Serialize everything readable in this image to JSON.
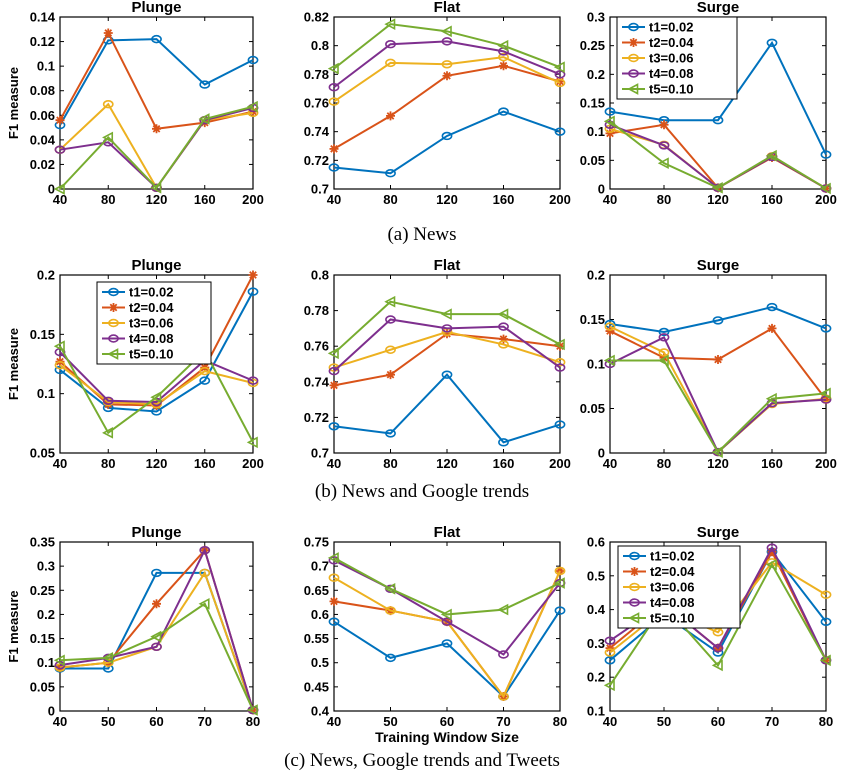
{
  "chart_data": [
    {
      "type": "line",
      "title": "Plunge",
      "xlabel": "",
      "ylabel": "F1 measure",
      "x": [
        40,
        80,
        120,
        160,
        200
      ],
      "xlim": [
        40,
        200
      ],
      "ylim": [
        0,
        0.14
      ],
      "yticks": [
        "0",
        "0.02",
        "0.04",
        "0.06",
        "0.08",
        "0.1",
        "0.12",
        "0.14"
      ],
      "xticks": [
        "40",
        "80",
        "120",
        "160",
        "200"
      ],
      "legend": null,
      "series": [
        {
          "name": "t1=0.02",
          "values": [
            0.052,
            0.121,
            0.122,
            0.085,
            0.105
          ]
        },
        {
          "name": "t2=0.04",
          "values": [
            0.056,
            0.127,
            0.049,
            0.054,
            0.063
          ]
        },
        {
          "name": "t3=0.06",
          "values": [
            0.032,
            0.069,
            0.001,
            0.056,
            0.062
          ]
        },
        {
          "name": "t4=0.08",
          "values": [
            0.032,
            0.038,
            0.001,
            0.056,
            0.066
          ]
        },
        {
          "name": "t5=0.10",
          "values": [
            0.0,
            0.042,
            0.001,
            0.057,
            0.067
          ]
        }
      ]
    },
    {
      "type": "line",
      "title": "Flat",
      "xlabel": "",
      "ylabel": "",
      "x": [
        40,
        80,
        120,
        160,
        200
      ],
      "xlim": [
        40,
        200
      ],
      "ylim": [
        0.7,
        0.82
      ],
      "yticks": [
        "0.7",
        "0.72",
        "0.74",
        "0.76",
        "0.78",
        "0.8",
        "0.82"
      ],
      "xticks": [
        "40",
        "80",
        "120",
        "160",
        "200"
      ],
      "legend": null,
      "series": [
        {
          "name": "t1=0.02",
          "values": [
            0.715,
            0.711,
            0.737,
            0.754,
            0.74
          ]
        },
        {
          "name": "t2=0.04",
          "values": [
            0.728,
            0.751,
            0.779,
            0.786,
            0.775
          ]
        },
        {
          "name": "t3=0.06",
          "values": [
            0.761,
            0.788,
            0.787,
            0.792,
            0.774
          ]
        },
        {
          "name": "t4=0.08",
          "values": [
            0.771,
            0.801,
            0.803,
            0.796,
            0.78
          ]
        },
        {
          "name": "t5=0.10",
          "values": [
            0.784,
            0.815,
            0.81,
            0.8,
            0.785
          ]
        }
      ]
    },
    {
      "type": "line",
      "title": "Surge",
      "xlabel": "",
      "ylabel": "",
      "x": [
        40,
        80,
        120,
        160,
        200
      ],
      "xlim": [
        40,
        200
      ],
      "ylim": [
        0,
        0.3
      ],
      "yticks": [
        "0",
        "0.05",
        "0.1",
        "0.15",
        "0.2",
        "0.25",
        "0.3"
      ],
      "xticks": [
        "40",
        "80",
        "120",
        "160",
        "200"
      ],
      "legend": "top-left",
      "series": [
        {
          "name": "t1=0.02",
          "values": [
            0.135,
            0.12,
            0.12,
            0.255,
            0.06
          ]
        },
        {
          "name": "t2=0.04",
          "values": [
            0.097,
            0.112,
            0.002,
            0.055,
            0.001
          ]
        },
        {
          "name": "t3=0.06",
          "values": [
            0.105,
            0.077,
            0.002,
            0.057,
            0.001
          ]
        },
        {
          "name": "t4=0.08",
          "values": [
            0.112,
            0.076,
            0.002,
            0.056,
            0.001
          ]
        },
        {
          "name": "t5=0.10",
          "values": [
            0.118,
            0.045,
            0.002,
            0.058,
            0.001
          ]
        }
      ]
    },
    {
      "type": "line",
      "title": "Plunge",
      "xlabel": "",
      "ylabel": "F1 measure",
      "x": [
        40,
        80,
        120,
        160,
        200
      ],
      "xlim": [
        40,
        200
      ],
      "ylim": [
        0.05,
        0.2
      ],
      "yticks": [
        "0.05",
        "0.1",
        "0.15",
        "0.2"
      ],
      "xticks": [
        "40",
        "80",
        "120",
        "160",
        "200"
      ],
      "legend": "top-left",
      "series": [
        {
          "name": "t1=0.02",
          "values": [
            0.12,
            0.088,
            0.085,
            0.111,
            0.186
          ]
        },
        {
          "name": "t2=0.04",
          "values": [
            0.127,
            0.091,
            0.09,
            0.122,
            0.2
          ]
        },
        {
          "name": "t3=0.06",
          "values": [
            0.124,
            0.093,
            0.091,
            0.119,
            0.109
          ]
        },
        {
          "name": "t4=0.08",
          "values": [
            0.135,
            0.094,
            0.093,
            0.128,
            0.111
          ]
        },
        {
          "name": "t5=0.10",
          "values": [
            0.14,
            0.067,
            0.097,
            0.136,
            0.059
          ]
        }
      ]
    },
    {
      "type": "line",
      "title": "Flat",
      "xlabel": "",
      "ylabel": "",
      "x": [
        40,
        80,
        120,
        160,
        200
      ],
      "xlim": [
        40,
        200
      ],
      "ylim": [
        0.7,
        0.8
      ],
      "yticks": [
        "0.7",
        "0.72",
        "0.74",
        "0.76",
        "0.78",
        "0.8"
      ],
      "xticks": [
        "40",
        "80",
        "120",
        "160",
        "200"
      ],
      "legend": null,
      "series": [
        {
          "name": "t1=0.02",
          "values": [
            0.715,
            0.711,
            0.744,
            0.706,
            0.716
          ]
        },
        {
          "name": "t2=0.04",
          "values": [
            0.738,
            0.744,
            0.767,
            0.764,
            0.76
          ]
        },
        {
          "name": "t3=0.06",
          "values": [
            0.748,
            0.758,
            0.768,
            0.761,
            0.751
          ]
        },
        {
          "name": "t4=0.08",
          "values": [
            0.746,
            0.775,
            0.77,
            0.771,
            0.748
          ]
        },
        {
          "name": "t5=0.10",
          "values": [
            0.756,
            0.785,
            0.778,
            0.778,
            0.761
          ]
        }
      ]
    },
    {
      "type": "line",
      "title": "Surge",
      "xlabel": "",
      "ylabel": "",
      "x": [
        40,
        80,
        120,
        160,
        200
      ],
      "xlim": [
        40,
        200
      ],
      "ylim": [
        0,
        0.2
      ],
      "yticks": [
        "0",
        "0.05",
        "0.1",
        "0.15",
        "0.2"
      ],
      "xticks": [
        "40",
        "80",
        "120",
        "160",
        "200"
      ],
      "legend": null,
      "series": [
        {
          "name": "t1=0.02",
          "values": [
            0.145,
            0.136,
            0.149,
            0.164,
            0.14
          ]
        },
        {
          "name": "t2=0.04",
          "values": [
            0.137,
            0.107,
            0.105,
            0.14,
            0.06
          ]
        },
        {
          "name": "t3=0.06",
          "values": [
            0.142,
            0.113,
            0.001,
            0.055,
            0.061
          ]
        },
        {
          "name": "t4=0.08",
          "values": [
            0.1,
            0.13,
            0.001,
            0.056,
            0.06
          ]
        },
        {
          "name": "t5=0.10",
          "values": [
            0.104,
            0.104,
            0.001,
            0.061,
            0.067
          ]
        }
      ]
    },
    {
      "type": "line",
      "title": "Plunge",
      "xlabel": "",
      "ylabel": "F1 measure",
      "x": [
        40,
        50,
        60,
        70,
        80
      ],
      "xlim": [
        40,
        80
      ],
      "ylim": [
        0,
        0.35
      ],
      "yticks": [
        "0",
        "0.05",
        "0.1",
        "0.15",
        "0.2",
        "0.25",
        "0.3",
        "0.35"
      ],
      "xticks": [
        "40",
        "50",
        "60",
        "70",
        "80"
      ],
      "legend": null,
      "series": [
        {
          "name": "t1=0.02",
          "values": [
            0.088,
            0.088,
            0.286,
            0.286,
            0.002
          ]
        },
        {
          "name": "t2=0.04",
          "values": [
            0.09,
            0.1,
            0.222,
            0.333,
            0.002
          ]
        },
        {
          "name": "t3=0.06",
          "values": [
            0.09,
            0.1,
            0.133,
            0.286,
            0.002
          ]
        },
        {
          "name": "t4=0.08",
          "values": [
            0.095,
            0.11,
            0.133,
            0.333,
            0.002
          ]
        },
        {
          "name": "t5=0.10",
          "values": [
            0.105,
            0.11,
            0.154,
            0.222,
            0.002
          ]
        }
      ]
    },
    {
      "type": "line",
      "title": "Flat",
      "xlabel": "Training Window Size",
      "ylabel": "",
      "x": [
        40,
        50,
        60,
        70,
        80
      ],
      "xlim": [
        40,
        80
      ],
      "ylim": [
        0.4,
        0.75
      ],
      "yticks": [
        "0.4",
        "0.45",
        "0.5",
        "0.55",
        "0.6",
        "0.65",
        "0.7",
        "0.75"
      ],
      "xticks": [
        "40",
        "50",
        "60",
        "70",
        "80"
      ],
      "legend": null,
      "series": [
        {
          "name": "t1=0.02",
          "values": [
            0.585,
            0.51,
            0.54,
            0.43,
            0.608
          ]
        },
        {
          "name": "t2=0.04",
          "values": [
            0.627,
            0.608,
            0.585,
            0.43,
            0.69
          ]
        },
        {
          "name": "t3=0.06",
          "values": [
            0.676,
            0.608,
            0.585,
            0.43,
            0.69
          ]
        },
        {
          "name": "t4=0.08",
          "values": [
            0.712,
            0.653,
            0.585,
            0.517,
            0.665
          ]
        },
        {
          "name": "t5=0.10",
          "values": [
            0.717,
            0.653,
            0.6,
            0.61,
            0.665
          ]
        }
      ]
    },
    {
      "type": "line",
      "title": "Surge",
      "xlabel": "",
      "ylabel": "",
      "x": [
        40,
        50,
        60,
        70,
        80
      ],
      "xlim": [
        40,
        80
      ],
      "ylim": [
        0.1,
        0.6
      ],
      "yticks": [
        "0.1",
        "0.2",
        "0.3",
        "0.4",
        "0.5",
        "0.6"
      ],
      "xticks": [
        "40",
        "50",
        "60",
        "70",
        "80"
      ],
      "legend": "top-left",
      "series": [
        {
          "name": "t1=0.02",
          "values": [
            0.25,
            0.385,
            0.273,
            0.571,
            0.364
          ]
        },
        {
          "name": "t2=0.04",
          "values": [
            0.286,
            0.417,
            0.286,
            0.571,
            0.25
          ]
        },
        {
          "name": "t3=0.06",
          "values": [
            0.273,
            0.4,
            0.333,
            0.54,
            0.444
          ]
        },
        {
          "name": "t4=0.08",
          "values": [
            0.308,
            0.417,
            0.286,
            0.583,
            0.25
          ]
        },
        {
          "name": "t5=0.10",
          "values": [
            0.176,
            0.415,
            0.235,
            0.533,
            0.25
          ]
        }
      ]
    }
  ],
  "captions": [
    "(a) News",
    "(b) News and Google trends",
    "(c) News, Google trends and Tweets"
  ],
  "series_styles": [
    {
      "color": "#0072bd",
      "marker": "circle"
    },
    {
      "color": "#d95319",
      "marker": "star"
    },
    {
      "color": "#edb120",
      "marker": "circle"
    },
    {
      "color": "#7e2f8e",
      "marker": "circle"
    },
    {
      "color": "#77ac30",
      "marker": "triangle-left"
    }
  ]
}
